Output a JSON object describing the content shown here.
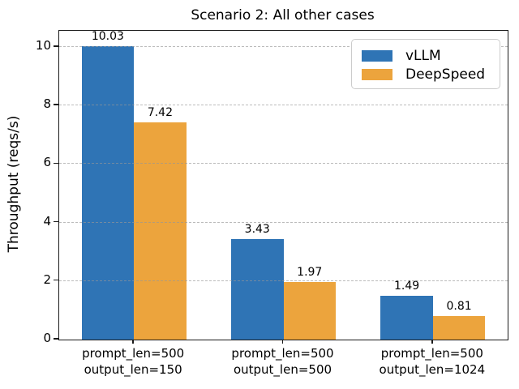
{
  "chart_data": {
    "type": "bar",
    "title": "Scenario 2: All other cases",
    "ylabel": "Throughput (reqs/s)",
    "xlabel": "",
    "categories": [
      [
        "prompt_len=500",
        "output_len=150"
      ],
      [
        "prompt_len=500",
        "output_len=500"
      ],
      [
        "prompt_len=500",
        "output_len=1024"
      ]
    ],
    "series": [
      {
        "name": "vLLM",
        "color": "#2F74B5",
        "values": [
          10.03,
          3.43,
          1.49
        ],
        "value_labels": [
          "10.03",
          "3.43",
          "1.49"
        ]
      },
      {
        "name": "DeepSpeed",
        "color": "#ECA43D",
        "values": [
          7.42,
          1.97,
          0.81
        ],
        "value_labels": [
          "7.42",
          "1.97",
          "0.81"
        ]
      }
    ],
    "yticks": [
      0,
      2,
      4,
      6,
      8,
      10
    ],
    "ylim": [
      0,
      10.55
    ],
    "grid": "horizontal-dashed-over-bars",
    "legend_position": "upper right",
    "bar_value_labels": true
  }
}
